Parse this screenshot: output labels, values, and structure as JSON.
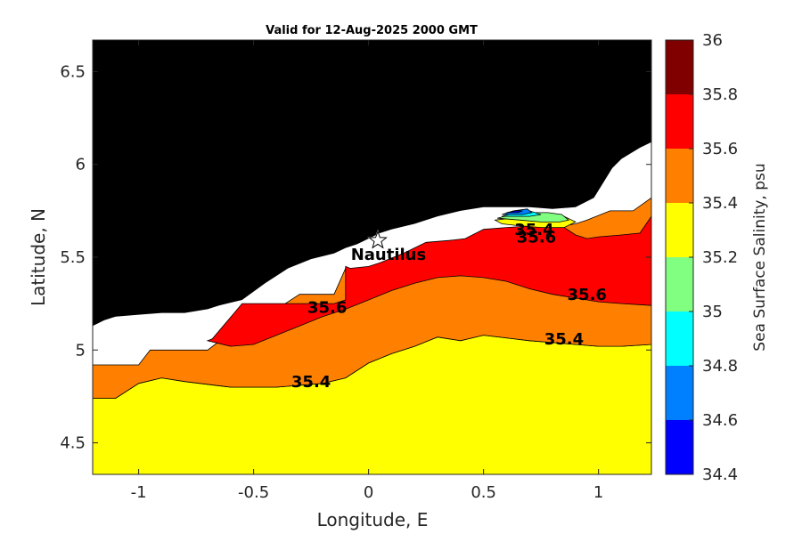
{
  "chart_data": {
    "type": "filled-contour-map",
    "title": "Valid for 12-Aug-2025 2000 GMT",
    "xlabel": "Longitude, E",
    "ylabel": "Latitude, N",
    "xlim": [
      -1.2,
      1.23
    ],
    "ylim": [
      4.33,
      6.67
    ],
    "xticks": [
      -1,
      -0.5,
      0,
      0.5,
      1
    ],
    "xtick_labels": [
      "-1",
      "-0.5",
      "0",
      "0.5",
      "1"
    ],
    "yticks": [
      4.5,
      5,
      5.5,
      6,
      6.5
    ],
    "ytick_labels": [
      "4.5",
      "5",
      "5.5",
      "6",
      "6.5"
    ],
    "colorbar": {
      "label": "Sea Surface Salinity, psu",
      "levels": [
        34.4,
        34.6,
        34.8,
        35,
        35.2,
        35.4,
        35.6,
        35.8,
        36
      ],
      "tick_labels": [
        "34.4",
        "34.6",
        "34.8",
        "35",
        "35.2",
        "35.4",
        "35.6",
        "35.8",
        "36"
      ],
      "colors": [
        "#0000ff",
        "#0080ff",
        "#00ffff",
        "#80ff80",
        "#ffff00",
        "#ff8000",
        "#ff0000",
        "#800000"
      ]
    },
    "land_color": "#000000",
    "station": {
      "name": "Nautilus",
      "lon": 0.04,
      "lat": 5.59
    },
    "contour_labels": [
      {
        "text": "35.4",
        "lon": -0.25,
        "lat": 4.8
      },
      {
        "text": "35.6",
        "lon": -0.18,
        "lat": 5.2
      },
      {
        "text": "35.4",
        "lon": 0.85,
        "lat": 5.03
      },
      {
        "text": "35.6",
        "lon": 0.95,
        "lat": 5.27
      },
      {
        "text": "35.4",
        "lon": 0.72,
        "lat": 5.62
      },
      {
        "text": "35.6",
        "lon": 0.73,
        "lat": 5.58
      }
    ],
    "regions": [
      {
        "fill": "#ffff00",
        "level_range": [
          35.2,
          35.4
        ],
        "boundary": [
          [
            -1.2,
            4.33
          ],
          [
            1.23,
            4.33
          ],
          [
            1.23,
            5.03
          ],
          [
            1.1,
            5.02
          ],
          [
            1.0,
            5.02
          ],
          [
            0.9,
            5.03
          ],
          [
            0.8,
            5.04
          ],
          [
            0.7,
            5.05
          ],
          [
            0.5,
            5.08
          ],
          [
            0.4,
            5.05
          ],
          [
            0.3,
            5.07
          ],
          [
            0.2,
            5.02
          ],
          [
            0.1,
            4.98
          ],
          [
            0.0,
            4.93
          ],
          [
            -0.1,
            4.85
          ],
          [
            -0.2,
            4.82
          ],
          [
            -0.4,
            4.8
          ],
          [
            -0.6,
            4.8
          ],
          [
            -0.8,
            4.83
          ],
          [
            -0.9,
            4.85
          ],
          [
            -1.0,
            4.82
          ],
          [
            -1.1,
            4.74
          ],
          [
            -1.2,
            4.74
          ]
        ]
      },
      {
        "fill": "#ff8000",
        "level_range": [
          35.4,
          35.6
        ],
        "boundary": [
          [
            -1.2,
            4.74
          ],
          [
            -1.1,
            4.74
          ],
          [
            -1.0,
            4.82
          ],
          [
            -0.9,
            4.85
          ],
          [
            -0.8,
            4.83
          ],
          [
            -0.6,
            4.8
          ],
          [
            -0.4,
            4.8
          ],
          [
            -0.2,
            4.82
          ],
          [
            -0.1,
            4.85
          ],
          [
            0.0,
            4.93
          ],
          [
            0.1,
            4.98
          ],
          [
            0.2,
            5.02
          ],
          [
            0.3,
            5.07
          ],
          [
            0.4,
            5.05
          ],
          [
            0.5,
            5.08
          ],
          [
            0.7,
            5.05
          ],
          [
            0.8,
            5.04
          ],
          [
            0.9,
            5.03
          ],
          [
            1.0,
            5.02
          ],
          [
            1.1,
            5.02
          ],
          [
            1.23,
            5.03
          ],
          [
            1.23,
            5.82
          ],
          [
            1.15,
            5.75
          ],
          [
            1.05,
            5.75
          ],
          [
            0.95,
            5.7
          ],
          [
            0.9,
            5.68
          ],
          [
            0.8,
            5.66
          ],
          [
            0.7,
            5.65
          ],
          [
            0.55,
            5.65
          ],
          [
            0.45,
            5.6
          ],
          [
            0.4,
            5.58
          ],
          [
            0.3,
            5.58
          ],
          [
            0.2,
            5.55
          ],
          [
            0.1,
            5.48
          ],
          [
            0.0,
            5.44
          ],
          [
            -0.1,
            5.44
          ],
          [
            -0.15,
            5.3
          ],
          [
            -0.3,
            5.3
          ],
          [
            -0.4,
            5.22
          ],
          [
            -0.5,
            5.18
          ],
          [
            -0.55,
            5.14
          ],
          [
            -0.7,
            5.0
          ],
          [
            -0.8,
            5.0
          ],
          [
            -0.9,
            5.0
          ],
          [
            -0.95,
            5.0
          ],
          [
            -1.0,
            4.92
          ],
          [
            -1.2,
            4.92
          ]
        ]
      },
      {
        "fill": "#ff0000",
        "level_range": [
          35.6,
          35.8
        ],
        "boundary": [
          [
            -0.7,
            5.05
          ],
          [
            -0.6,
            5.02
          ],
          [
            -0.5,
            5.03
          ],
          [
            -0.4,
            5.08
          ],
          [
            -0.3,
            5.13
          ],
          [
            -0.2,
            5.18
          ],
          [
            -0.1,
            5.22
          ],
          [
            0.0,
            5.27
          ],
          [
            0.1,
            5.32
          ],
          [
            0.2,
            5.36
          ],
          [
            0.3,
            5.39
          ],
          [
            0.4,
            5.4
          ],
          [
            0.5,
            5.39
          ],
          [
            0.6,
            5.37
          ],
          [
            0.7,
            5.33
          ],
          [
            0.8,
            5.3
          ],
          [
            0.9,
            5.28
          ],
          [
            1.0,
            5.26
          ],
          [
            1.1,
            5.25
          ],
          [
            1.23,
            5.24
          ],
          [
            1.23,
            5.72
          ],
          [
            1.18,
            5.63
          ],
          [
            1.1,
            5.62
          ],
          [
            1.0,
            5.61
          ],
          [
            0.95,
            5.6
          ],
          [
            0.9,
            5.62
          ],
          [
            0.85,
            5.66
          ],
          [
            0.72,
            5.67
          ],
          [
            0.6,
            5.66
          ],
          [
            0.5,
            5.65
          ],
          [
            0.42,
            5.6
          ],
          [
            0.35,
            5.59
          ],
          [
            0.25,
            5.58
          ],
          [
            0.15,
            5.52
          ],
          [
            0.05,
            5.47
          ],
          [
            0.0,
            5.45
          ],
          [
            -0.08,
            5.44
          ],
          [
            -0.1,
            5.45
          ],
          [
            -0.1,
            5.27
          ],
          [
            -0.15,
            5.25
          ],
          [
            -0.35,
            5.25
          ],
          [
            -0.55,
            5.25
          ],
          [
            -0.68,
            5.06
          ]
        ]
      },
      {
        "fill": "#ffff00",
        "level_range": [
          35.2,
          35.4
        ],
        "boundary": [
          [
            0.55,
            5.7
          ],
          [
            0.62,
            5.71
          ],
          [
            0.7,
            5.71
          ],
          [
            0.78,
            5.72
          ],
          [
            0.85,
            5.72
          ],
          [
            0.9,
            5.69
          ],
          [
            0.85,
            5.66
          ],
          [
            0.75,
            5.66
          ],
          [
            0.65,
            5.67
          ],
          [
            0.58,
            5.68
          ]
        ]
      },
      {
        "fill": "#80ff80",
        "level_range": [
          35,
          35.2
        ],
        "boundary": [
          [
            0.56,
            5.71
          ],
          [
            0.62,
            5.73
          ],
          [
            0.7,
            5.74
          ],
          [
            0.78,
            5.74
          ],
          [
            0.84,
            5.73
          ],
          [
            0.87,
            5.7
          ],
          [
            0.83,
            5.69
          ],
          [
            0.75,
            5.69
          ],
          [
            0.66,
            5.7
          ]
        ]
      },
      {
        "fill": "#00ffff",
        "level_range": [
          34.8,
          35
        ],
        "boundary": [
          [
            0.58,
            5.72
          ],
          [
            0.64,
            5.74
          ],
          [
            0.7,
            5.75
          ],
          [
            0.75,
            5.73
          ],
          [
            0.7,
            5.72
          ],
          [
            0.64,
            5.72
          ]
        ]
      },
      {
        "fill": "#0080ff",
        "level_range": [
          34.6,
          34.8
        ],
        "boundary": [
          [
            0.58,
            5.73
          ],
          [
            0.63,
            5.75
          ],
          [
            0.69,
            5.76
          ],
          [
            0.71,
            5.74
          ],
          [
            0.67,
            5.73
          ],
          [
            0.62,
            5.73
          ]
        ]
      },
      {
        "fill": "#0000ff",
        "level_range": [
          34.4,
          34.6
        ],
        "boundary": [
          [
            0.6,
            5.74
          ],
          [
            0.64,
            5.75
          ],
          [
            0.67,
            5.75
          ],
          [
            0.65,
            5.74
          ]
        ]
      },
      {
        "fill": "#000000",
        "level_range": "land",
        "boundary": [
          [
            -1.2,
            5.13
          ],
          [
            -1.15,
            5.16
          ],
          [
            -1.1,
            5.18
          ],
          [
            -1.0,
            5.19
          ],
          [
            -0.9,
            5.2
          ],
          [
            -0.8,
            5.2
          ],
          [
            -0.7,
            5.22
          ],
          [
            -0.65,
            5.24
          ],
          [
            -0.55,
            5.27
          ],
          [
            -0.45,
            5.36
          ],
          [
            -0.35,
            5.44
          ],
          [
            -0.25,
            5.49
          ],
          [
            -0.15,
            5.52
          ],
          [
            -0.1,
            5.55
          ],
          [
            -0.05,
            5.57
          ],
          [
            0.0,
            5.6
          ],
          [
            0.05,
            5.63
          ],
          [
            0.1,
            5.65
          ],
          [
            0.2,
            5.68
          ],
          [
            0.3,
            5.72
          ],
          [
            0.4,
            5.75
          ],
          [
            0.5,
            5.77
          ],
          [
            0.6,
            5.77
          ],
          [
            0.7,
            5.77
          ],
          [
            0.8,
            5.76
          ],
          [
            0.9,
            5.77
          ],
          [
            0.98,
            5.82
          ],
          [
            1.02,
            5.9
          ],
          [
            1.06,
            5.98
          ],
          [
            1.1,
            6.03
          ],
          [
            1.18,
            6.09
          ],
          [
            1.23,
            6.12
          ],
          [
            1.23,
            6.67
          ],
          [
            -1.2,
            6.67
          ]
        ]
      }
    ]
  }
}
